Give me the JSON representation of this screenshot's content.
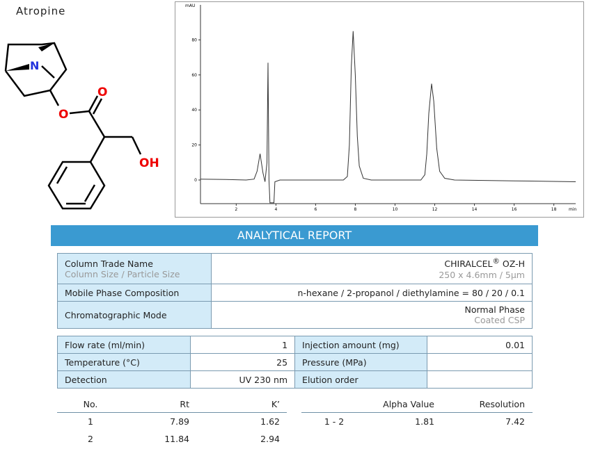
{
  "molecule": {
    "name": "Atropine",
    "atoms": [
      "N",
      "O",
      "O",
      "OH"
    ]
  },
  "chromatogram": {
    "type": "line",
    "ylabel": "mAU",
    "xlabel": "min",
    "color": "#333333",
    "xlim": [
      0.2,
      19.1
    ],
    "ylim": [
      -13.5,
      100
    ],
    "xticks": [
      2,
      4,
      6,
      8,
      10,
      12,
      14,
      16,
      18
    ],
    "yticks": [
      0,
      20,
      40,
      60,
      80
    ],
    "x": [
      0.2,
      1.5,
      2.5,
      2.9,
      3.05,
      3.2,
      3.35,
      3.45,
      3.55,
      3.6,
      3.65,
      3.7,
      3.9,
      3.95,
      4.2,
      6,
      7.4,
      7.6,
      7.7,
      7.8,
      7.89,
      8.0,
      8.1,
      8.2,
      8.4,
      8.8,
      11.3,
      11.5,
      11.6,
      11.7,
      11.84,
      11.95,
      12.1,
      12.25,
      12.5,
      13,
      16,
      19.1
    ],
    "values": [
      0.5,
      0.3,
      0,
      0.5,
      5,
      15,
      4,
      -1,
      10,
      67,
      0,
      -13,
      -13,
      -1,
      0,
      0,
      0,
      2,
      20,
      65,
      85,
      60,
      25,
      8,
      1,
      0,
      0,
      3,
      15,
      38,
      55,
      45,
      18,
      5,
      1,
      0,
      -0.5,
      -1
    ]
  },
  "report": {
    "title": "ANALYTICAL REPORT",
    "column": {
      "label": "Column Trade Name",
      "sublabel": "Column Size / Particle Size",
      "name": "CHIRALCEL",
      "mark": "®",
      "model": "OZ-H",
      "size": "250 x 4.6mm / 5µm"
    },
    "mobile_phase": {
      "label": "Mobile Phase Composition",
      "value": "n-hexane / 2-propanol / diethylamine = 80 / 20 / 0.1"
    },
    "mode": {
      "label": "Chromatographic Mode",
      "value": "Normal Phase",
      "subvalue": "Coated CSP"
    },
    "conditions": {
      "rows": [
        [
          "Flow rate (ml/min)",
          "1",
          "Injection amount (mg)",
          "0.01"
        ],
        [
          "Temperature (°C)",
          "25",
          "Pressure (MPa)"
        ],
        [
          "Detection",
          "UV 230 nm",
          "Elution order"
        ]
      ]
    },
    "results": {
      "headers": [
        "No.",
        "Rt",
        "K’",
        "Alpha Value",
        "Resolution"
      ],
      "rows": [
        [
          "1",
          "7.89",
          "1.62",
          "1 - 2",
          "1.81",
          "7.42"
        ],
        [
          "2",
          "11.84",
          "2.94"
        ]
      ]
    }
  }
}
